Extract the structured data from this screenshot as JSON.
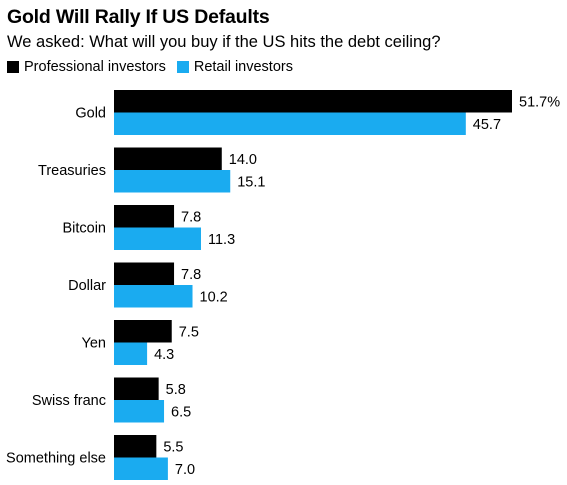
{
  "chart_data": {
    "type": "bar",
    "orientation": "horizontal",
    "title": "Gold Will Rally If US Defaults",
    "subtitle": "We asked: What will you buy if the US hits the debt ceiling?",
    "categories": [
      "Gold",
      "Treasuries",
      "Bitcoin",
      "Dollar",
      "Yen",
      "Swiss franc",
      "Something else"
    ],
    "series": [
      {
        "name": "Professional investors",
        "color": "#000000",
        "values": [
          51.7,
          14.0,
          7.8,
          7.8,
          7.5,
          5.8,
          5.5
        ],
        "labels": [
          "51.7%",
          "14.0",
          "7.8",
          "7.8",
          "7.5",
          "5.8",
          "5.5"
        ]
      },
      {
        "name": "Retail investors",
        "color": "#1aabf0",
        "values": [
          45.7,
          15.1,
          11.3,
          10.2,
          4.3,
          6.5,
          7.0
        ],
        "labels": [
          "45.7",
          "15.1",
          "11.3",
          "10.2",
          "4.3",
          "6.5",
          "7.0"
        ]
      }
    ],
    "xlim": [
      0,
      51.7
    ],
    "legend": "top-left",
    "grid": false
  }
}
